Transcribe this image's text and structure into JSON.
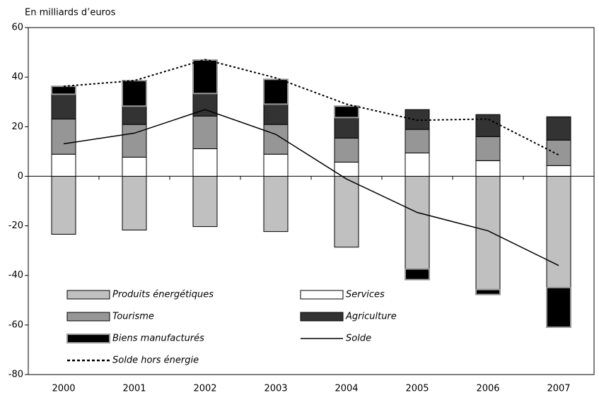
{
  "chart_data": {
    "type": "bar",
    "ylabel": "En milliards d’euros",
    "categories": [
      "2000",
      "2001",
      "2002",
      "2003",
      "2004",
      "2005",
      "2006",
      "2007"
    ],
    "ylim": [
      -80,
      60
    ],
    "yticks": [
      -80,
      -60,
      -40,
      -20,
      0,
      20,
      40,
      60
    ],
    "series": [
      {
        "name": "Produits énergétiques",
        "type": "bar",
        "color": "#c0c0c0",
        "values": [
          -23.4,
          -21.7,
          -20.3,
          -22.3,
          -28.6,
          -37.4,
          -45.7,
          -44.9
        ]
      },
      {
        "name": "Services",
        "type": "bar",
        "color": "#ffffff",
        "values": [
          8.9,
          7.7,
          11.1,
          8.9,
          5.7,
          9.4,
          6.3,
          4.3
        ]
      },
      {
        "name": "Tourisme",
        "type": "bar",
        "color": "#969696",
        "values": [
          14.2,
          13.2,
          13.2,
          12,
          9.7,
          9.5,
          9.7,
          10.3
        ]
      },
      {
        "name": "Agriculture",
        "type": "bar",
        "color": "#333333",
        "values": [
          10,
          7.4,
          9.1,
          8.2,
          8.3,
          8,
          8.9,
          9.4
        ]
      },
      {
        "name": "Biens manufacturés",
        "type": "bar",
        "color": "#000000",
        "values": [
          3.2,
          10.3,
          13.5,
          10,
          4.6,
          -4.3,
          -2,
          -16
        ]
      },
      {
        "name": "Solde",
        "type": "line",
        "color": "#000000",
        "values": [
          13.1,
          17.4,
          26.9,
          16.9,
          -1.1,
          -14.6,
          -22,
          -36
        ]
      },
      {
        "name": "Solde hors énergie",
        "type": "line",
        "dash": true,
        "color": "#000000",
        "values": [
          36.3,
          38.6,
          47.1,
          39.7,
          29.1,
          22.6,
          23.1,
          8.6
        ]
      }
    ]
  }
}
